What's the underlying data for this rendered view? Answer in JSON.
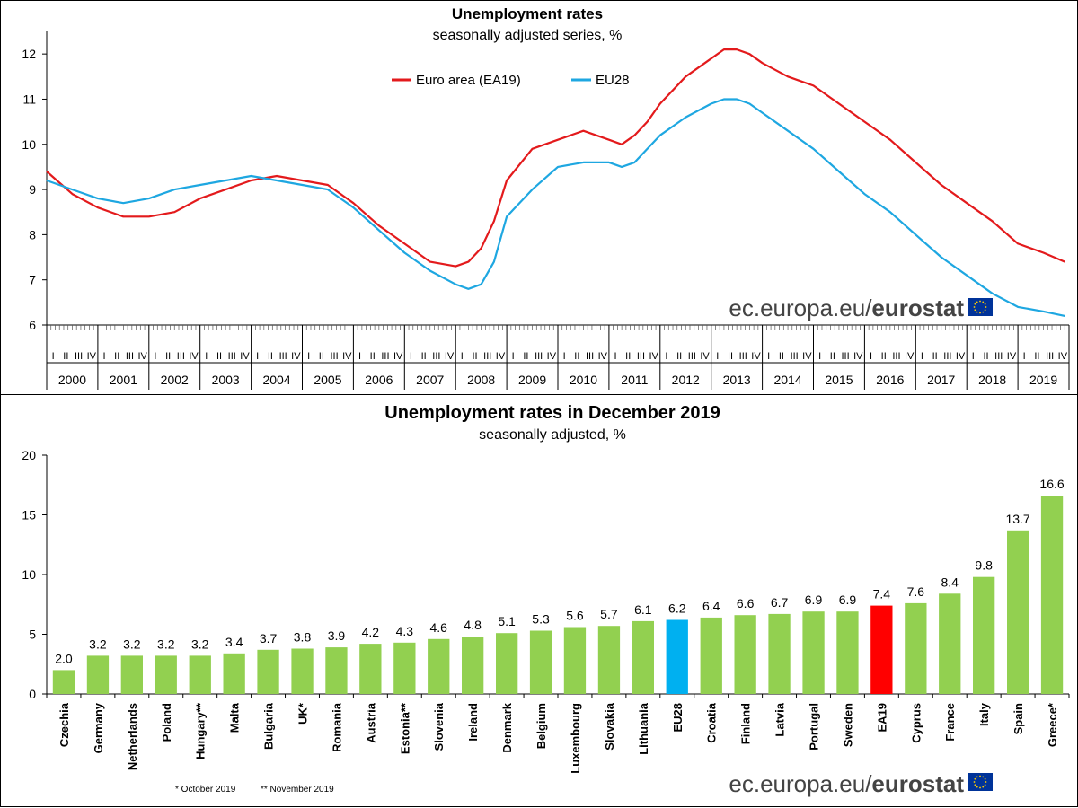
{
  "line_chart": {
    "title": "Unemployment rates",
    "subtitle": "seasonally adjusted series, %",
    "watermark_prefix": "ec.europa.eu/",
    "watermark_brand": "eurostat"
  },
  "bar_chart": {
    "title": "Unemployment rates in December 2019",
    "subtitle": "seasonally adjusted, %",
    "footnote_1": "*  October 2019",
    "footnote_2": "** November 2019",
    "watermark_prefix": "ec.europa.eu/",
    "watermark_brand": "eurostat"
  },
  "chart_data": [
    {
      "type": "line",
      "title": "Unemployment rates",
      "subtitle": "seasonally adjusted series, %",
      "xlabel": "",
      "ylabel": "",
      "ylim": [
        6,
        12.5
      ],
      "yticks": [
        6,
        7,
        8,
        9,
        10,
        11,
        12
      ],
      "quarter_labels": [
        "I",
        "II",
        "III",
        "IV"
      ],
      "years": [
        "2000",
        "2001",
        "2002",
        "2003",
        "2004",
        "2005",
        "2006",
        "2007",
        "2008",
        "2009",
        "2010",
        "2011",
        "2012",
        "2013",
        "2014",
        "2015",
        "2016",
        "2017",
        "2018",
        "2019"
      ],
      "legend_position": "top-center",
      "series": [
        {
          "name": "Euro area (EA19)",
          "color": "#e31a1c",
          "x": [
            2000.0,
            2000.5,
            2001.0,
            2001.5,
            2002.0,
            2002.5,
            2003.0,
            2003.5,
            2004.0,
            2004.5,
            2005.0,
            2005.5,
            2006.0,
            2006.5,
            2007.0,
            2007.5,
            2008.0,
            2008.25,
            2008.5,
            2008.75,
            2009.0,
            2009.5,
            2010.0,
            2010.5,
            2011.0,
            2011.25,
            2011.5,
            2011.75,
            2012.0,
            2012.5,
            2013.0,
            2013.25,
            2013.5,
            2013.75,
            2014.0,
            2014.5,
            2015.0,
            2015.5,
            2016.0,
            2016.5,
            2017.0,
            2017.5,
            2018.0,
            2018.5,
            2019.0,
            2019.5,
            2019.917
          ],
          "values": [
            9.4,
            8.9,
            8.6,
            8.4,
            8.4,
            8.5,
            8.8,
            9.0,
            9.2,
            9.3,
            9.2,
            9.1,
            8.7,
            8.2,
            7.8,
            7.4,
            7.3,
            7.4,
            7.7,
            8.3,
            9.2,
            9.9,
            10.1,
            10.3,
            10.1,
            10.0,
            10.2,
            10.5,
            10.9,
            11.5,
            11.9,
            12.1,
            12.1,
            12.0,
            11.8,
            11.5,
            11.3,
            10.9,
            10.5,
            10.1,
            9.6,
            9.1,
            8.7,
            8.3,
            7.8,
            7.6,
            7.4
          ]
        },
        {
          "name": "EU28",
          "color": "#1ea7e1",
          "x": [
            2000.0,
            2000.5,
            2001.0,
            2001.5,
            2002.0,
            2002.5,
            2003.0,
            2003.5,
            2004.0,
            2004.5,
            2005.0,
            2005.5,
            2006.0,
            2006.5,
            2007.0,
            2007.5,
            2008.0,
            2008.25,
            2008.5,
            2008.75,
            2009.0,
            2009.5,
            2010.0,
            2010.5,
            2011.0,
            2011.25,
            2011.5,
            2011.75,
            2012.0,
            2012.5,
            2013.0,
            2013.25,
            2013.5,
            2013.75,
            2014.0,
            2014.5,
            2015.0,
            2015.5,
            2016.0,
            2016.5,
            2017.0,
            2017.5,
            2018.0,
            2018.5,
            2019.0,
            2019.5,
            2019.917
          ],
          "values": [
            9.2,
            9.0,
            8.8,
            8.7,
            8.8,
            9.0,
            9.1,
            9.2,
            9.3,
            9.2,
            9.1,
            9.0,
            8.6,
            8.1,
            7.6,
            7.2,
            6.9,
            6.8,
            6.9,
            7.4,
            8.4,
            9.0,
            9.5,
            9.6,
            9.6,
            9.5,
            9.6,
            9.9,
            10.2,
            10.6,
            10.9,
            11.0,
            11.0,
            10.9,
            10.7,
            10.3,
            9.9,
            9.4,
            8.9,
            8.5,
            8.0,
            7.5,
            7.1,
            6.7,
            6.4,
            6.3,
            6.2
          ]
        }
      ]
    },
    {
      "type": "bar",
      "title": "Unemployment rates in December 2019",
      "subtitle": "seasonally adjusted, %",
      "xlabel": "",
      "ylabel": "",
      "ylim": [
        0,
        20
      ],
      "yticks": [
        0,
        5,
        10,
        15,
        20
      ],
      "categories": [
        "Czechia",
        "Germany",
        "Netherlands",
        "Poland",
        "Hungary**",
        "Malta",
        "Bulgaria",
        "UK*",
        "Romania",
        "Austria",
        "Estonia**",
        "Slovenia",
        "Ireland",
        "Denmark",
        "Belgium",
        "Luxembourg",
        "Slovakia",
        "Lithuania",
        "EU28",
        "Croatia",
        "Finland",
        "Latvia",
        "Portugal",
        "Sweden",
        "EA19",
        "Cyprus",
        "France",
        "Italy",
        "Spain",
        "Greece*"
      ],
      "values": [
        2.0,
        3.2,
        3.2,
        3.2,
        3.2,
        3.4,
        3.7,
        3.8,
        3.9,
        4.2,
        4.3,
        4.6,
        4.8,
        5.1,
        5.3,
        5.6,
        5.7,
        6.1,
        6.2,
        6.4,
        6.6,
        6.7,
        6.9,
        6.9,
        7.4,
        7.6,
        8.4,
        9.8,
        13.7,
        16.6
      ],
      "value_labels": [
        "2.0",
        "3.2",
        "3.2",
        "3.2",
        "3.2",
        "3.4",
        "3.7",
        "3.8",
        "3.9",
        "4.2",
        "4.3",
        "4.6",
        "4.8",
        "5.1",
        "5.3",
        "5.6",
        "5.7",
        "6.1",
        "6.2",
        "6.4",
        "6.6",
        "6.7",
        "6.9",
        "6.9",
        "7.4",
        "7.6",
        "8.4",
        "9.8",
        "13.7",
        "16.6"
      ],
      "colors": {
        "default": "#92d050",
        "EU28": "#00b0f0",
        "EA19": "#ff0000"
      }
    }
  ]
}
